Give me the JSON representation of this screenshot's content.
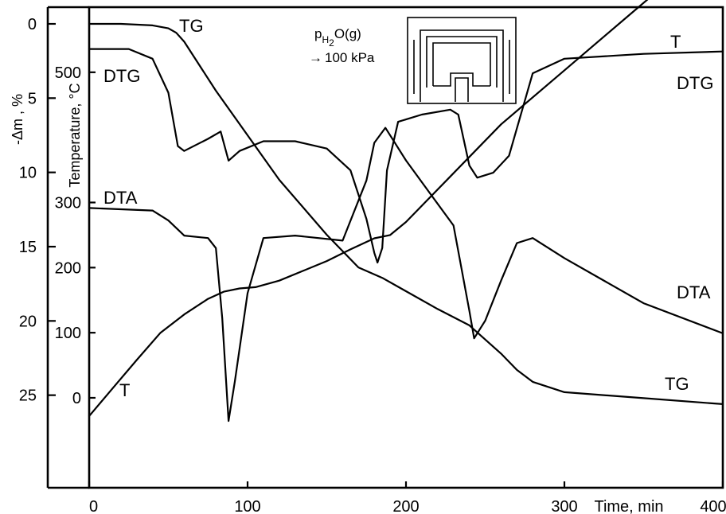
{
  "chart_data": {
    "type": "line",
    "xlabel": "Time, min",
    "left_axis_title": "-Δm , %",
    "right_axis_title": "Temperature, °C",
    "x_ticks": [
      "0",
      "100",
      "200",
      "300",
      "400"
    ],
    "mass_ticks": [
      "0",
      "5",
      "10",
      "15",
      "20",
      "25"
    ],
    "temp_ticks": [
      "500",
      "300",
      "200",
      "100",
      "0"
    ],
    "xlim": [
      0,
      400
    ],
    "mass_lim": [
      0,
      30
    ],
    "temp_lim": [
      -110,
      600
    ],
    "annotation": {
      "p_label": "p",
      "p_subscript": "H",
      "p_subscript_2": "2",
      "p_rest": "O(g)",
      "value": "100 kPa",
      "arrow": "→"
    },
    "series": [
      {
        "name": "TG",
        "label_top": "TG",
        "label_bottom": "TG",
        "axis": "mass",
        "x": [
          0,
          20,
          40,
          50,
          55,
          60,
          80,
          100,
          120,
          150,
          170,
          185,
          200,
          220,
          240,
          260,
          270,
          280,
          300,
          350,
          400
        ],
        "y": [
          0.0,
          0.0,
          0.1,
          0.3,
          0.6,
          1.2,
          4.5,
          7.5,
          10.5,
          14.2,
          16.4,
          17.1,
          18.0,
          19.2,
          20.3,
          22.2,
          23.3,
          24.1,
          24.8,
          25.2,
          25.6
        ]
      },
      {
        "name": "T",
        "label_top": "T",
        "label_bottom": "T",
        "axis": "temp",
        "x": [
          0,
          15,
          30,
          45,
          60,
          75,
          85,
          95,
          105,
          120,
          135,
          150,
          165,
          180,
          190,
          200,
          230,
          260,
          300,
          340,
          370,
          400
        ],
        "y": [
          -28,
          15,
          58,
          100,
          128,
          152,
          163,
          168,
          170,
          180,
          195,
          210,
          228,
          245,
          250,
          270,
          345,
          420,
          503,
          586,
          648,
          710
        ]
      },
      {
        "name": "DTG",
        "label_top": "DTG",
        "label_right": "DTG",
        "axis": "relative",
        "x": [
          0,
          25,
          40,
          50,
          56,
          60,
          75,
          83,
          88,
          95,
          110,
          130,
          150,
          165,
          175,
          180,
          182,
          185,
          188,
          195,
          210,
          228,
          233,
          240,
          245,
          255,
          265,
          280,
          300,
          350,
          400
        ],
        "y": [
          8.8,
          8.8,
          8.4,
          7.0,
          4.8,
          4.6,
          5.1,
          5.4,
          4.2,
          4.6,
          5.0,
          5.0,
          4.7,
          3.8,
          1.8,
          0.4,
          0.0,
          0.6,
          3.8,
          5.8,
          6.1,
          6.3,
          6.1,
          4.0,
          3.5,
          3.7,
          4.4,
          7.8,
          8.4,
          8.6,
          8.7
        ]
      },
      {
        "name": "DTA",
        "label_left": "DTA",
        "label_right": "DTA",
        "axis": "relative",
        "x": [
          0,
          40,
          50,
          60,
          75,
          80,
          84,
          88,
          92,
          100,
          110,
          130,
          160,
          175,
          180,
          187,
          190,
          200,
          215,
          230,
          240,
          243,
          250,
          260,
          270,
          280,
          300,
          350,
          400
        ],
        "y": [
          4.4,
          4.3,
          3.9,
          3.3,
          3.2,
          2.8,
          0.0,
          -4.1,
          -2.5,
          1.0,
          3.2,
          3.3,
          3.1,
          5.5,
          7.0,
          7.6,
          7.3,
          6.3,
          5.0,
          3.7,
          0.3,
          -0.8,
          -0.1,
          1.5,
          3.0,
          3.2,
          2.4,
          0.6,
          -0.6
        ]
      }
    ]
  }
}
